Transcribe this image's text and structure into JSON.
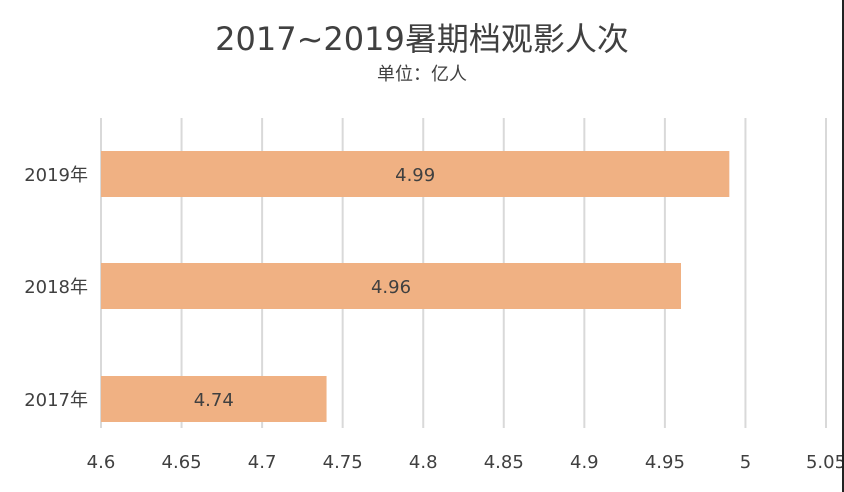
{
  "colors": {
    "bar": "#F0B183",
    "grid": "#D9D9D9",
    "text": "#404040"
  },
  "chart_data": {
    "type": "bar",
    "orientation": "horizontal",
    "title": "2017~2019暑期档观影人次",
    "subtitle": "单位：亿人",
    "categories": [
      "2019年",
      "2018年",
      "2017年"
    ],
    "values": [
      4.99,
      4.96,
      4.74
    ],
    "value_labels": [
      "4.99",
      "4.96",
      "4.74"
    ],
    "xlim": [
      4.6,
      5.05
    ],
    "x_ticks": [
      4.6,
      4.65,
      4.7,
      4.75,
      4.8,
      4.85,
      4.9,
      4.95,
      5.0,
      5.05
    ],
    "x_tick_labels": [
      "4.6",
      "4.65",
      "4.7",
      "4.75",
      "4.8",
      "4.85",
      "4.9",
      "4.95",
      "5",
      "5.05"
    ],
    "grid": true,
    "legend": "none"
  }
}
